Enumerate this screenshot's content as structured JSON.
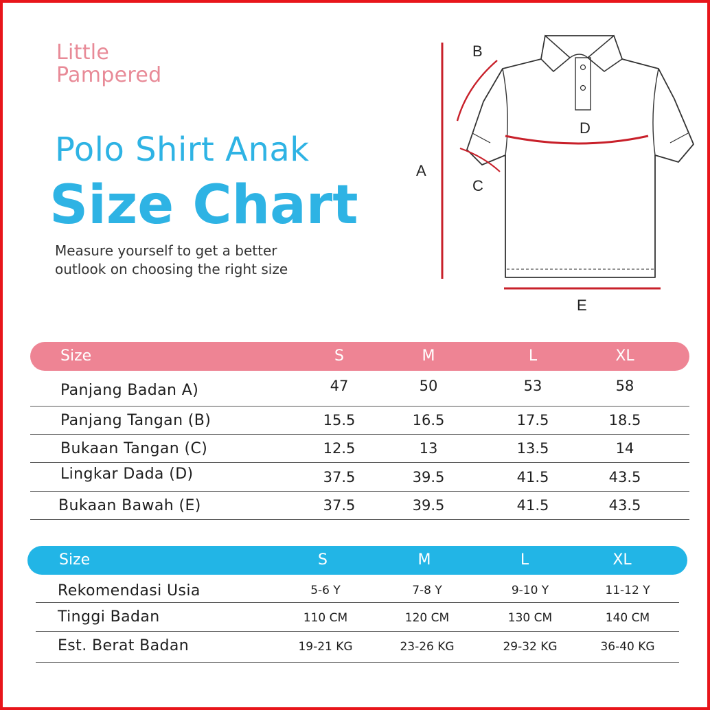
{
  "brand": {
    "line1": "Little",
    "line2": "Pampered"
  },
  "title": "Polo Shirt Anak",
  "headline": "Size Chart",
  "subtitle": {
    "line1": "Measure yourself to get a better",
    "line2": "outlook  on choosing the right size"
  },
  "diagram_labels": {
    "a": "A",
    "b": "B",
    "c": "C",
    "d": "D",
    "e": "E"
  },
  "colors": {
    "pink": "#ee8494",
    "blue": "#22b5e6",
    "red": "#c8202a",
    "border": "#e8151b"
  },
  "size_table": {
    "header": [
      "Size",
      "S",
      "M",
      "L",
      "XL"
    ],
    "rows": [
      {
        "label": "Panjang Badan A)",
        "values": [
          "47",
          "50",
          "53",
          "58"
        ]
      },
      {
        "label": "Panjang Tangan (B)",
        "values": [
          "15.5",
          "16.5",
          "17.5",
          "18.5"
        ]
      },
      {
        "label": "Bukaan Tangan (C)",
        "values": [
          "12.5",
          "13",
          "13.5",
          "14"
        ]
      },
      {
        "label": "Lingkar Dada  (D)",
        "values": [
          "37.5",
          "39.5",
          "41.5",
          "43.5"
        ]
      },
      {
        "label": "Bukaan Bawah (E)",
        "values": [
          "37.5",
          "39.5",
          "41.5",
          "43.5"
        ]
      }
    ]
  },
  "age_table": {
    "header": [
      "Size",
      "S",
      "M",
      "L",
      "XL"
    ],
    "rows": [
      {
        "label": "Rekomendasi Usia",
        "values": [
          "5-6 Y",
          "7-8 Y",
          "9-10 Y",
          "11-12 Y"
        ]
      },
      {
        "label": "Tinggi Badan",
        "values": [
          "110 CM",
          "120 CM",
          "130 CM",
          "140 CM"
        ]
      },
      {
        "label": "Est. Berat Badan",
        "values": [
          "19-21 KG",
          "23-26 KG",
          "29-32 KG",
          "36-40 KG"
        ]
      }
    ]
  }
}
